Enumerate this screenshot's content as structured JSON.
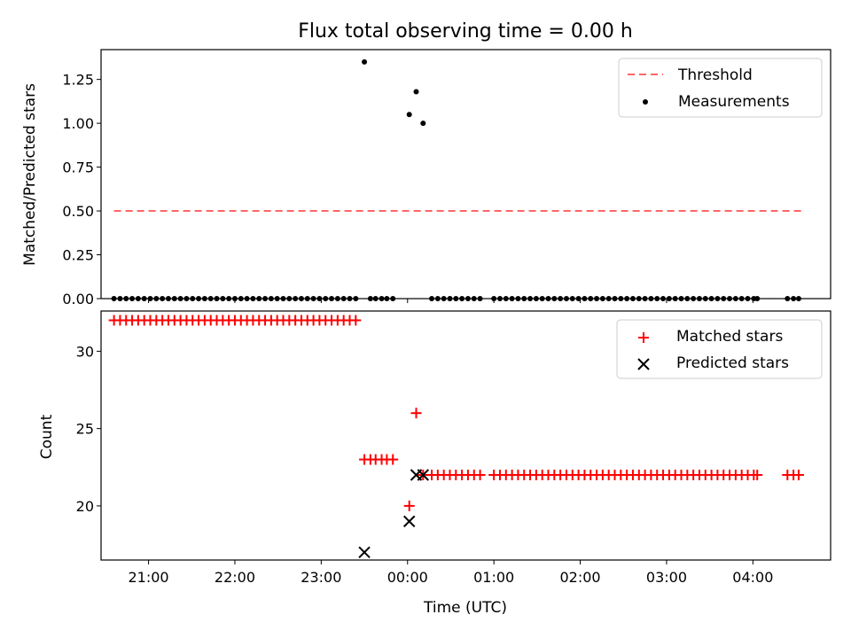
{
  "chart_data": [
    {
      "type": "scatter",
      "title": "Flux total observing time = 0.00 h",
      "xlabel": "",
      "ylabel": "Matched/Predicted stars",
      "xlim": [
        -3.55,
        4.9
      ],
      "ylim": [
        0.0,
        1.42
      ],
      "yticks": [
        0.0,
        0.25,
        0.5,
        0.75,
        1.0,
        1.25
      ],
      "ytick_labels": [
        "0.00",
        "0.25",
        "0.50",
        "0.75",
        "1.00",
        "1.25"
      ],
      "xticks": [
        -3,
        -2,
        -1,
        0,
        1,
        2,
        3,
        4
      ],
      "legend_position": "top-right",
      "series": [
        {
          "name": "Threshold",
          "kind": "line",
          "style": "dashed",
          "color": "#ff6666",
          "x": [
            -3.4,
            4.57
          ],
          "y": [
            0.5,
            0.5
          ]
        },
        {
          "name": "Measurements",
          "kind": "scatter",
          "marker": "dot",
          "color": "#000000",
          "x": [
            -3.4,
            -3.33,
            -3.26,
            -3.19,
            -3.12,
            -3.05,
            -2.98,
            -2.91,
            -2.84,
            -2.77,
            -2.7,
            -2.63,
            -2.56,
            -2.49,
            -2.42,
            -2.35,
            -2.28,
            -2.21,
            -2.14,
            -2.07,
            -2.0,
            -1.93,
            -1.86,
            -1.79,
            -1.72,
            -1.65,
            -1.58,
            -1.51,
            -1.44,
            -1.37,
            -1.3,
            -1.23,
            -1.16,
            -1.09,
            -1.02,
            -0.95,
            -0.88,
            -0.81,
            -0.74,
            -0.67,
            -0.6,
            -0.5,
            -0.43,
            -0.37,
            -0.3,
            -0.24,
            -0.17,
            0.02,
            0.1,
            0.18,
            0.28,
            0.35,
            0.42,
            0.49,
            0.56,
            0.63,
            0.7,
            0.77,
            0.84,
            1.0,
            1.07,
            1.14,
            1.21,
            1.28,
            1.35,
            1.42,
            1.49,
            1.56,
            1.63,
            1.7,
            1.77,
            1.84,
            1.91,
            1.98,
            2.05,
            2.12,
            2.19,
            2.26,
            2.33,
            2.4,
            2.47,
            2.54,
            2.61,
            2.68,
            2.75,
            2.82,
            2.89,
            2.96,
            3.03,
            3.1,
            3.17,
            3.24,
            3.31,
            3.38,
            3.45,
            3.52,
            3.59,
            3.66,
            3.73,
            3.8,
            3.87,
            3.94,
            4.01,
            4.05,
            4.4,
            4.47,
            4.53
          ],
          "y": [
            0,
            0,
            0,
            0,
            0,
            0,
            0,
            0,
            0,
            0,
            0,
            0,
            0,
            0,
            0,
            0,
            0,
            0,
            0,
            0,
            0,
            0,
            0,
            0,
            0,
            0,
            0,
            0,
            0,
            0,
            0,
            0,
            0,
            0,
            0,
            0,
            0,
            0,
            0,
            0,
            0,
            1.35,
            0,
            0,
            0,
            0,
            0,
            1.05,
            1.18,
            1.0,
            0,
            0,
            0,
            0,
            0,
            0,
            0,
            0,
            0,
            0,
            0,
            0,
            0,
            0,
            0,
            0,
            0,
            0,
            0,
            0,
            0,
            0,
            0,
            0,
            0,
            0,
            0,
            0,
            0,
            0,
            0,
            0,
            0,
            0,
            0,
            0,
            0,
            0,
            0,
            0,
            0,
            0,
            0,
            0,
            0,
            0,
            0,
            0,
            0,
            0,
            0,
            0,
            0,
            0,
            0,
            0,
            0
          ]
        }
      ]
    },
    {
      "type": "scatter",
      "title": "",
      "xlabel": "Time (UTC)",
      "ylabel": "Count",
      "xlim": [
        -3.55,
        4.9
      ],
      "ylim": [
        16.5,
        32.6
      ],
      "yticks": [
        20,
        25,
        30
      ],
      "ytick_labels": [
        "20",
        "25",
        "30"
      ],
      "xticks": [
        -3,
        -2,
        -1,
        0,
        1,
        2,
        3,
        4
      ],
      "xtick_labels": [
        "21:00",
        "22:00",
        "23:00",
        "00:00",
        "01:00",
        "02:00",
        "03:00",
        "04:00"
      ],
      "legend_position": "top-right",
      "series": [
        {
          "name": "Matched stars",
          "kind": "scatter",
          "marker": "plus",
          "color": "#ff0000",
          "x": [
            -3.4,
            -3.33,
            -3.26,
            -3.19,
            -3.12,
            -3.05,
            -2.98,
            -2.91,
            -2.84,
            -2.77,
            -2.7,
            -2.63,
            -2.56,
            -2.49,
            -2.42,
            -2.35,
            -2.28,
            -2.21,
            -2.14,
            -2.07,
            -2.0,
            -1.93,
            -1.86,
            -1.79,
            -1.72,
            -1.65,
            -1.58,
            -1.51,
            -1.44,
            -1.37,
            -1.3,
            -1.23,
            -1.16,
            -1.09,
            -1.02,
            -0.95,
            -0.88,
            -0.81,
            -0.74,
            -0.67,
            -0.6,
            -0.5,
            -0.43,
            -0.37,
            -0.3,
            -0.24,
            -0.17,
            0.02,
            0.1,
            0.18,
            0.28,
            0.35,
            0.42,
            0.49,
            0.56,
            0.63,
            0.7,
            0.77,
            0.84,
            1.0,
            1.07,
            1.14,
            1.21,
            1.28,
            1.35,
            1.42,
            1.49,
            1.56,
            1.63,
            1.7,
            1.77,
            1.84,
            1.91,
            1.98,
            2.05,
            2.12,
            2.19,
            2.26,
            2.33,
            2.4,
            2.47,
            2.54,
            2.61,
            2.68,
            2.75,
            2.82,
            2.89,
            2.96,
            3.03,
            3.1,
            3.17,
            3.24,
            3.31,
            3.38,
            3.45,
            3.52,
            3.59,
            3.66,
            3.73,
            3.8,
            3.87,
            3.94,
            4.01,
            4.05,
            4.4,
            4.47,
            4.53
          ],
          "y": [
            32,
            32,
            32,
            32,
            32,
            32,
            32,
            32,
            32,
            32,
            32,
            32,
            32,
            32,
            32,
            32,
            32,
            32,
            32,
            32,
            32,
            32,
            32,
            32,
            32,
            32,
            32,
            32,
            32,
            32,
            32,
            32,
            32,
            32,
            32,
            32,
            32,
            32,
            32,
            32,
            32,
            23,
            23,
            23,
            23,
            23,
            23,
            20,
            26,
            22,
            22,
            22,
            22,
            22,
            22,
            22,
            22,
            22,
            22,
            22,
            22,
            22,
            22,
            22,
            22,
            22,
            22,
            22,
            22,
            22,
            22,
            22,
            22,
            22,
            22,
            22,
            22,
            22,
            22,
            22,
            22,
            22,
            22,
            22,
            22,
            22,
            22,
            22,
            22,
            22,
            22,
            22,
            22,
            22,
            22,
            22,
            22,
            22,
            22,
            22,
            22,
            22,
            22,
            22,
            22,
            22,
            22
          ]
        },
        {
          "name": "Predicted stars",
          "kind": "scatter",
          "marker": "x",
          "color": "#000000",
          "x": [
            -0.5,
            0.02,
            0.1,
            0.18
          ],
          "y": [
            17,
            19,
            22,
            22
          ]
        }
      ]
    }
  ]
}
